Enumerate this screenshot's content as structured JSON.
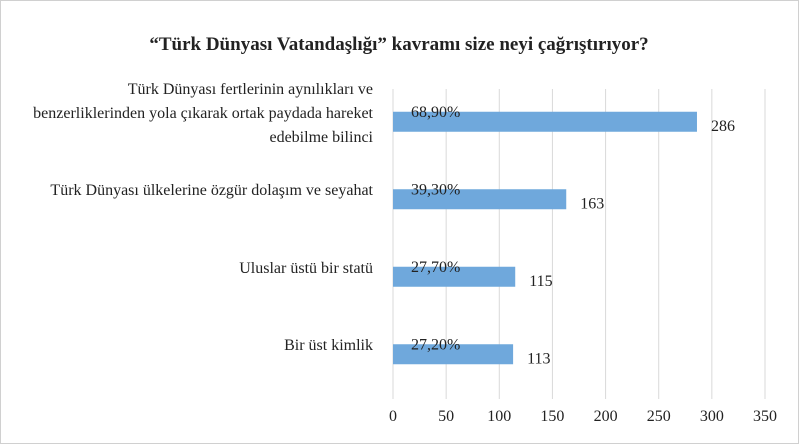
{
  "chart_data": {
    "type": "barh",
    "title": "“Türk Dünyası Vatandaşlığı” kavramı size neyi çağrıştırıyor?",
    "categories": [
      "Türk Dünyası fertlerinin aynılıkları ve benzerliklerinden yola çıkarak ortak paydada hareket edebilme bilinci",
      "Türk Dünyası ülkelerine özgür dolaşım ve seyahat",
      "Uluslar üstü bir statü",
      "Bir üst kimlik"
    ],
    "values": [
      286,
      163,
      115,
      113
    ],
    "share_labels": [
      "68,90%",
      "39,30%",
      "27,70%",
      "27,20%"
    ],
    "color": "#6fa8dc",
    "xlim": [
      0,
      350
    ],
    "xticks": [
      0,
      50,
      100,
      150,
      200,
      250,
      300,
      350
    ],
    "grid": true
  }
}
